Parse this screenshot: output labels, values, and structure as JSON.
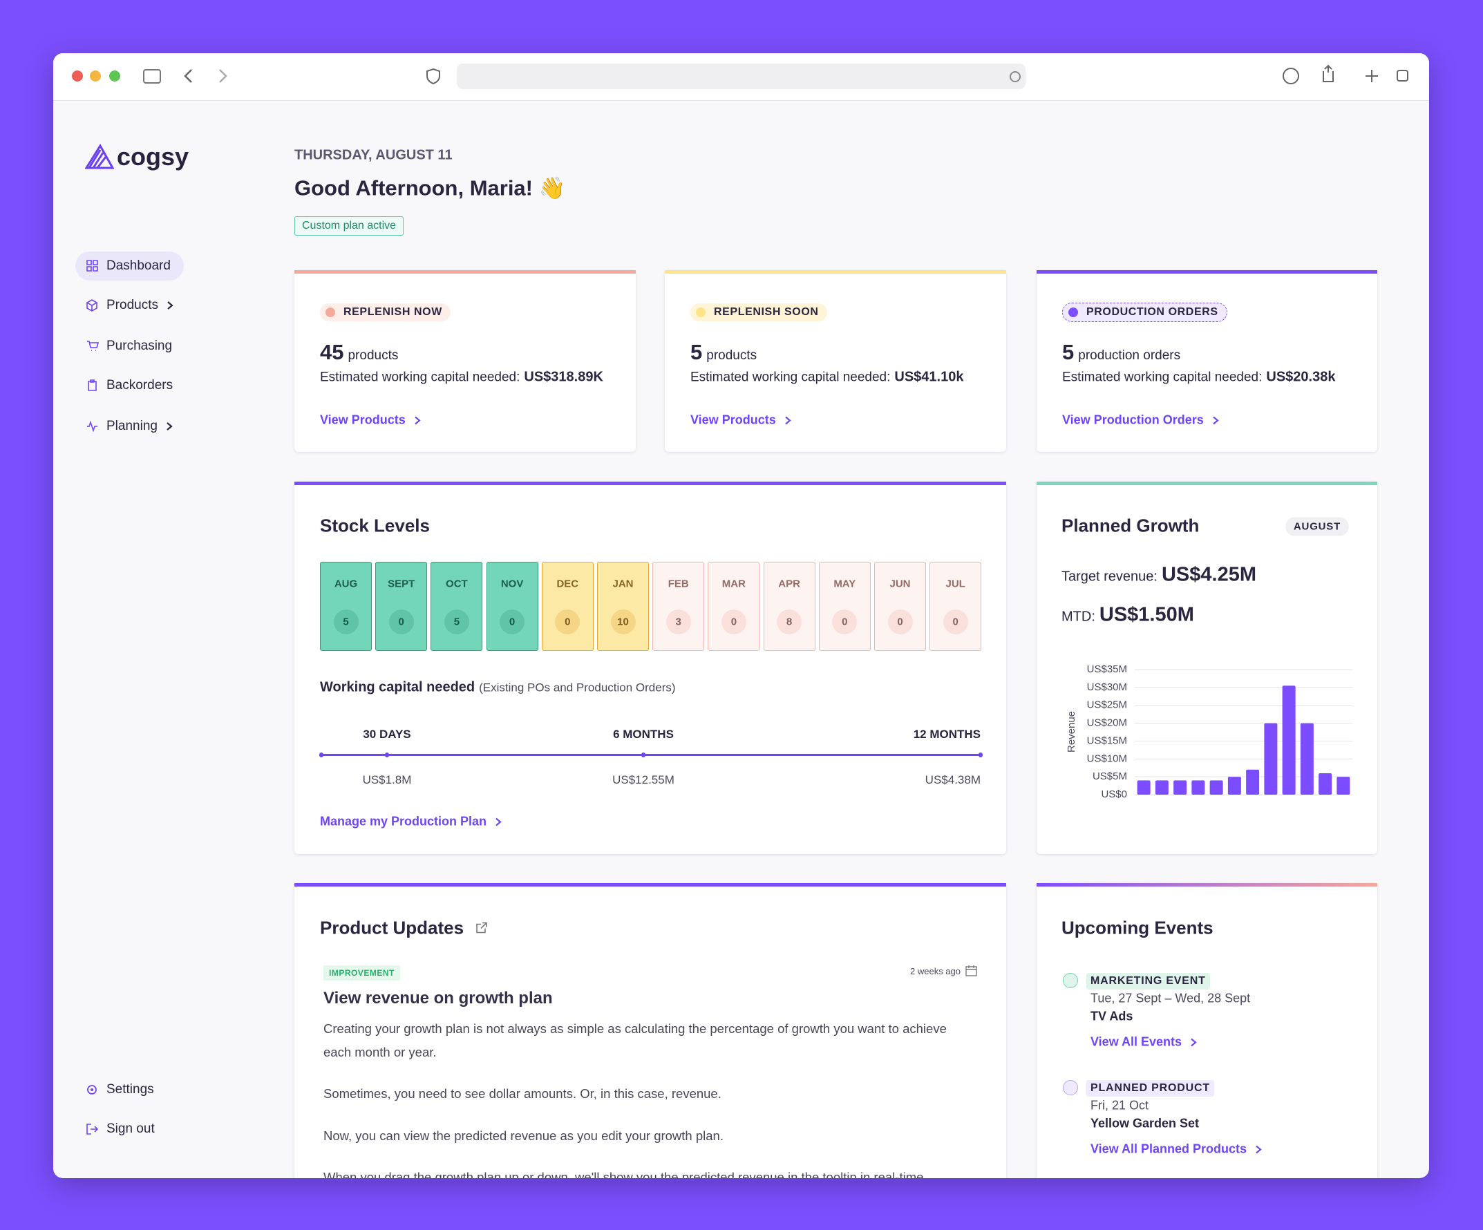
{
  "sidebar": {
    "logo": "cogsy",
    "nav": [
      {
        "label": "Dashboard",
        "active": true,
        "expandable": false
      },
      {
        "label": "Products",
        "active": false,
        "expandable": true
      },
      {
        "label": "Purchasing",
        "active": false,
        "expandable": false
      },
      {
        "label": "Backorders",
        "active": false,
        "expandable": false
      },
      {
        "label": "Planning",
        "active": false,
        "expandable": true
      }
    ],
    "footer": [
      "Settings",
      "Sign out"
    ]
  },
  "header": {
    "date": "THURSDAY, AUGUST 11",
    "greeting": "Good Afternoon, Maria! 👋",
    "badge": "Custom plan active"
  },
  "summary_cards": [
    {
      "label": "REPLENISH NOW",
      "color": "#f4a99b",
      "pill": "#fdeeea",
      "count": 45,
      "unit": "products",
      "capital_label": "Estimated working capital needed:",
      "capital": "US$318.89K",
      "link": "View Products"
    },
    {
      "label": "REPLENISH SOON",
      "color": "#fde38a",
      "pill": "#fff5d6",
      "count": 5,
      "unit": "products",
      "capital_label": "Estimated working capital needed:",
      "capital": "US$41.10k",
      "link": "View Products"
    },
    {
      "label": "PRODUCTION ORDERS",
      "color": "#7c4dff",
      "pill": "#efeaff",
      "count": 5,
      "unit": "production orders",
      "capital_label": "Estimated working capital needed:",
      "capital": "US$20.38k",
      "link": "View Production Orders"
    }
  ],
  "stock_levels": {
    "title": "Stock Levels",
    "months": [
      {
        "month": "AUG",
        "count": 5,
        "color": "#74d6b8",
        "border": "#2f9e7e"
      },
      {
        "month": "SEPT",
        "count": 0,
        "color": "#74d6b8",
        "border": "#2f9e7e"
      },
      {
        "month": "OCT",
        "count": 5,
        "color": "#74d6b8",
        "border": "#2f9e7e"
      },
      {
        "month": "NOV",
        "count": 0,
        "color": "#74d6b8",
        "border": "#2f9e7e"
      },
      {
        "month": "DEC",
        "count": 0,
        "color": "#fde9a6",
        "border": "#e3a93a"
      },
      {
        "month": "JAN",
        "count": 10,
        "color": "#fde9a6",
        "border": "#e3a93a"
      },
      {
        "month": "FEB",
        "count": 3,
        "color": "#fdf3f0",
        "border": "#f2b5a9"
      },
      {
        "month": "MAR",
        "count": 0,
        "color": "#fdf3f0",
        "border": "#f2b5a9"
      },
      {
        "month": "APR",
        "count": 8,
        "color": "#fdf3f0",
        "border": "#f2b5a9"
      },
      {
        "month": "MAY",
        "count": 0,
        "color": "#fdf3f0",
        "border": "#f2b5a9"
      },
      {
        "month": "JUN",
        "count": 0,
        "color": "#fdf3f0",
        "border": "#f2b5a9"
      },
      {
        "month": "JUL",
        "count": 0,
        "color": "#fdf3f0",
        "border": "#f2b5a9"
      }
    ],
    "capital_title": "Working capital needed",
    "capital_note": "(Existing POs and Production Orders)",
    "horizons": [
      {
        "label": "30 DAYS",
        "amount": "US$1.8M"
      },
      {
        "label": "6 MONTHS",
        "amount": "US$12.55M"
      },
      {
        "label": "12 MONTHS",
        "amount": "US$4.38M"
      }
    ],
    "link": "Manage my Production Plan"
  },
  "planned_growth": {
    "title": "Planned Growth",
    "badge": "AUGUST",
    "target_label": "Target revenue:",
    "target": "US$4.25M",
    "mtd_label": "MTD:",
    "mtd": "US$1.50M"
  },
  "chart_data": {
    "type": "bar",
    "y_label": "Revenue",
    "categories": [
      null,
      null,
      null,
      null,
      null,
      null,
      null,
      null,
      null,
      null,
      null,
      null
    ],
    "values": [
      4000000,
      4000000,
      4000000,
      4000000,
      4000000,
      5000000,
      7000000,
      20000000,
      30500000,
      20000000,
      6000000,
      5000000
    ],
    "color": "#7c4dff",
    "ylim": [
      0,
      35000000
    ],
    "yticks": [
      {
        "value": 0,
        "label": "US$0"
      },
      {
        "value": 5000000,
        "label": "US$5M"
      },
      {
        "value": 10000000,
        "label": "US$10M"
      },
      {
        "value": 15000000,
        "label": "US$15M"
      },
      {
        "value": 20000000,
        "label": "US$20M"
      },
      {
        "value": 25000000,
        "label": "US$25M"
      },
      {
        "value": 30000000,
        "label": "US$30M"
      },
      {
        "value": 35000000,
        "label": "US$35M"
      }
    ],
    "grid": true
  },
  "product_updates": {
    "title": "Product Updates",
    "tag": "IMPROVEMENT",
    "time": "2 weeks ago",
    "heading": "View revenue on growth plan",
    "paragraphs": [
      "Creating your growth plan is not always as simple as calculating the percentage of growth you want to achieve each month or year.",
      "Sometimes, you need to see dollar amounts. Or, in this case, revenue.",
      "Now, you can view the predicted revenue as you edit your growth plan.",
      "When you drag the growth plan up or down, we'll show you the predicted revenue in the tooltip in real-time."
    ]
  },
  "upcoming_events": {
    "title": "Upcoming Events",
    "events": [
      {
        "type": "MARKETING EVENT",
        "date": "Tue, 27 Sept – Wed, 28 Sept",
        "name": "TV Ads",
        "link": "View All Events",
        "color": "#dff5ec"
      },
      {
        "type": "PLANNED PRODUCT",
        "date": "Fri, 21 Oct",
        "name": "Yellow Garden Set",
        "link": "View All Planned Products",
        "color": "#efeaff"
      }
    ]
  }
}
